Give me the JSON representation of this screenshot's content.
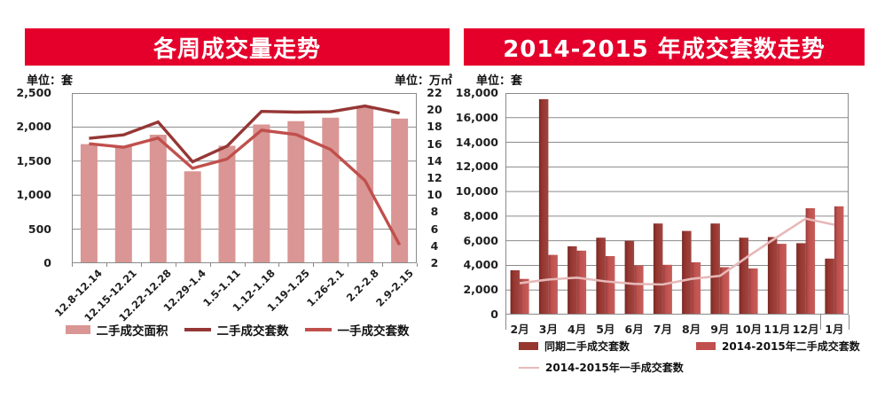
{
  "colors": {
    "banner": "#e4002b",
    "banner_text": "#ffffff",
    "gridline": "#8a8a8a",
    "axis_text": "#1f1f1f",
    "background": "#ffffff"
  },
  "chart_data": [
    {
      "type": "bar+line",
      "title": "各周成交量走势",
      "unit_left": "单位：套",
      "unit_right": "单位：万㎡",
      "grid": true,
      "legend_position": "bottom",
      "categories": [
        "12.8-12.14",
        "12.15-12.21",
        "12.22-12.28",
        "12.29-1.4",
        "1.5-1.11",
        "1.12-1.18",
        "1.19-1.25",
        "1.26-2.1",
        "2.2-2.8",
        "2.9-2.15"
      ],
      "left_axis": {
        "min": 0,
        "max": 2500,
        "step": 500,
        "tick_labels": [
          "2,500",
          "2,000",
          "1,500",
          "1,000",
          "500",
          "0"
        ]
      },
      "right_axis": {
        "min": 2,
        "max": 22,
        "step": 2,
        "tick_labels": [
          "22",
          "20",
          "18",
          "16",
          "14",
          "12",
          "10",
          "8",
          "6",
          "4",
          "2"
        ]
      },
      "series": [
        {
          "name": "二手成交面积",
          "type": "bar",
          "axis": "right",
          "color": "#D99694",
          "values": [
            16.0,
            15.7,
            17.1,
            12.8,
            15.8,
            18.3,
            18.7,
            19.1,
            20.3,
            19.0
          ]
        },
        {
          "name": "二手成交套数",
          "type": "line",
          "axis": "left",
          "color": "#953735",
          "values": [
            1835,
            1885,
            2075,
            1490,
            1720,
            2230,
            2220,
            2225,
            2310,
            2205
          ]
        },
        {
          "name": "一手成交套数",
          "type": "line",
          "axis": "left",
          "color": "#C0504D",
          "values": [
            1755,
            1705,
            1840,
            1395,
            1530,
            1955,
            1890,
            1670,
            1215,
            270
          ]
        }
      ]
    },
    {
      "type": "bar+line",
      "title": "2014-2015 年成交套数走势",
      "unit_left": "单位：套",
      "grid": true,
      "legend_position": "bottom",
      "categories": [
        "2月",
        "3月",
        "4月",
        "5月",
        "6月",
        "7月",
        "8月",
        "9月",
        "10月",
        "11月",
        "12月",
        "1月"
      ],
      "y_axis": {
        "min": 0,
        "max": 18000,
        "step": 2000,
        "tick_labels": [
          "18,000",
          "16,000",
          "14,000",
          "12,000",
          "10,000",
          "8,000",
          "6,000",
          "4,000",
          "2,000",
          "0"
        ]
      },
      "series": [
        {
          "name": "同期二手成交套数",
          "type": "bar",
          "color": "#97352f",
          "values": [
            3600,
            17500,
            5550,
            6250,
            6000,
            7400,
            6800,
            7400,
            6250,
            6300,
            5800,
            4550
          ]
        },
        {
          "name": "2014-2015年二手成交套数",
          "type": "bar",
          "color": "#c0504d",
          "values": [
            2900,
            4850,
            5200,
            4750,
            4000,
            4050,
            4250,
            3850,
            3750,
            5750,
            8650,
            8800
          ]
        },
        {
          "name": "2014-2015年一手成交套数",
          "type": "line",
          "color": "#e6b9b8",
          "values": [
            2550,
            2850,
            3000,
            2700,
            2500,
            2450,
            2900,
            3150,
            4750,
            6300,
            7800,
            7300
          ]
        }
      ]
    }
  ]
}
